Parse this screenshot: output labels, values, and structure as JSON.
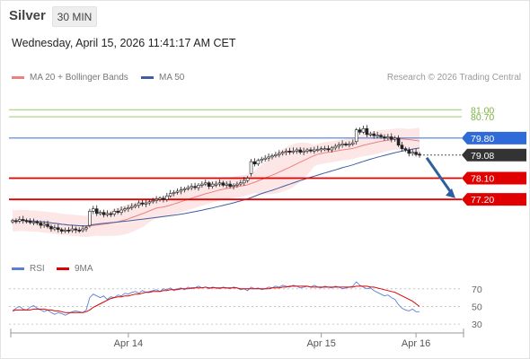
{
  "header": {
    "instrument": "Silver",
    "timeframe": "30 MIN",
    "datetime": "Wednesday, April 15, 2026 11:41:17 AM CET"
  },
  "legend": {
    "ma20_label": "MA 20 + Bollinger Bands",
    "ma50_label": "MA 50",
    "credit": "Research © 2026 Trading Central",
    "rsi_label": "RSI",
    "rsi_ma_label": "9MA"
  },
  "colors": {
    "bull": "#ffffff",
    "bear": "#222222",
    "ma20": "#f08080",
    "bands": "#fde6e6",
    "ma50": "#3f5ea3",
    "green_level": "#9ccc65",
    "blue_level": "#4a7fd8",
    "red_level": "#e00000",
    "arrow": "#2e5f9e",
    "rsi": "#5b7fd6",
    "rsi_ma": "#e00000"
  },
  "chart_data": {
    "type": "candlestick",
    "price_axis": {
      "ylim": [
        75.0,
        82.0
      ]
    },
    "x_axis": {
      "tick_labels": [
        "Apr 14",
        "Apr 15",
        "Apr 16"
      ],
      "tick_bars": [
        33,
        88,
        115
      ]
    },
    "levels": [
      {
        "label": "81.00",
        "value": 81.0,
        "style": "green"
      },
      {
        "label": "80.70",
        "value": 80.7,
        "style": "green"
      },
      {
        "label": "79.80",
        "value": 79.8,
        "style": "blue"
      },
      {
        "label": "79.08",
        "value": 79.08,
        "style": "last"
      },
      {
        "label": "78.10",
        "value": 78.1,
        "style": "red"
      },
      {
        "label": "77.20",
        "value": 77.2,
        "style": "red"
      }
    ],
    "forecast_arrow": {
      "from": 79.08,
      "to": 77.25
    },
    "candles_close": [
      76.3,
      76.28,
      76.35,
      76.3,
      76.28,
      76.22,
      76.25,
      76.2,
      76.1,
      76.15,
      76.05,
      75.95,
      76.0,
      75.92,
      75.85,
      75.9,
      75.88,
      75.95,
      75.9,
      75.88,
      75.95,
      76.0,
      76.7,
      76.8,
      76.6,
      76.65,
      76.55,
      76.6,
      76.58,
      76.7,
      76.65,
      76.75,
      76.8,
      76.85,
      76.9,
      76.95,
      77.05,
      77.0,
      77.05,
      77.1,
      77.15,
      77.2,
      77.25,
      77.2,
      77.35,
      77.45,
      77.5,
      77.55,
      77.6,
      77.65,
      77.7,
      77.75,
      77.7,
      77.8,
      77.85,
      77.9,
      77.75,
      77.85,
      77.85,
      77.9,
      77.8,
      77.85,
      77.75,
      77.8,
      77.85,
      77.9,
      78.0,
      78.1,
      78.8,
      78.7,
      78.85,
      78.9,
      78.95,
      79.0,
      79.05,
      79.1,
      79.15,
      79.2,
      79.25,
      79.2,
      79.25,
      79.3,
      79.2,
      79.25,
      79.3,
      79.25,
      79.3,
      79.32,
      79.35,
      79.35,
      79.3,
      79.38,
      79.45,
      79.5,
      79.55,
      79.52,
      79.55,
      79.6,
      80.15,
      80.05,
      80.2,
      79.95,
      79.98,
      79.9,
      79.92,
      79.85,
      79.8,
      79.85,
      79.75,
      79.8,
      79.5,
      79.35,
      79.3,
      79.15,
      79.2,
      79.1,
      79.08
    ],
    "candles_open": [
      76.25,
      76.3,
      76.28,
      76.35,
      76.3,
      76.28,
      76.22,
      76.25,
      76.2,
      76.1,
      76.15,
      76.05,
      75.95,
      76.0,
      75.92,
      75.85,
      75.9,
      75.88,
      75.95,
      75.9,
      75.88,
      75.95,
      76.1,
      76.7,
      76.8,
      76.6,
      76.65,
      76.55,
      76.6,
      76.58,
      76.7,
      76.65,
      76.75,
      76.8,
      76.85,
      76.9,
      76.95,
      77.05,
      77.0,
      77.05,
      77.1,
      77.15,
      77.2,
      77.25,
      77.2,
      77.35,
      77.45,
      77.5,
      77.55,
      77.6,
      77.65,
      77.7,
      77.75,
      77.7,
      77.8,
      77.85,
      77.9,
      77.75,
      77.85,
      77.85,
      77.9,
      77.8,
      77.85,
      77.75,
      77.8,
      77.85,
      77.9,
      78.0,
      78.3,
      78.8,
      78.7,
      78.85,
      78.9,
      78.95,
      79.0,
      79.05,
      79.1,
      79.15,
      79.2,
      79.25,
      79.2,
      79.25,
      79.3,
      79.2,
      79.25,
      79.3,
      79.25,
      79.3,
      79.32,
      79.35,
      79.35,
      79.3,
      79.38,
      79.45,
      79.5,
      79.55,
      79.52,
      79.55,
      79.65,
      80.15,
      80.05,
      80.2,
      79.95,
      79.98,
      79.9,
      79.92,
      79.85,
      79.8,
      79.85,
      79.75,
      79.8,
      79.5,
      79.35,
      79.3,
      79.15,
      79.2,
      79.12
    ],
    "rsi": {
      "ticks": [
        70,
        50,
        30
      ],
      "ylim": [
        25,
        80
      ],
      "values": [
        45,
        48,
        50,
        47,
        46,
        49,
        51,
        48,
        46,
        44,
        46,
        43,
        41,
        43,
        42,
        40,
        42,
        44,
        45,
        44,
        43,
        46,
        60,
        64,
        62,
        60,
        62,
        58,
        61,
        60,
        63,
        62,
        65,
        64,
        66,
        67,
        65,
        68,
        66,
        67,
        68,
        69,
        67,
        70,
        69,
        71,
        68,
        70,
        71,
        69,
        72,
        70,
        71,
        73,
        71,
        72,
        70,
        72,
        71,
        70,
        72,
        71,
        70,
        72,
        71,
        69,
        70,
        68,
        72,
        70,
        71,
        69,
        70,
        72,
        71,
        73,
        72,
        74,
        73,
        72,
        74,
        73,
        71,
        72,
        73,
        72,
        74,
        72,
        71,
        73,
        72,
        71,
        73,
        72,
        70,
        71,
        72,
        73,
        78,
        74,
        72,
        70,
        71,
        68,
        66,
        64,
        62,
        63,
        60,
        58,
        52,
        48,
        46,
        45,
        47,
        44,
        44
      ],
      "ma": [
        45,
        46,
        46,
        46,
        46,
        46,
        47,
        47,
        47,
        47,
        46,
        46,
        45,
        45,
        44,
        43,
        43,
        43,
        43,
        43,
        43,
        44,
        46,
        49,
        51,
        53,
        55,
        57,
        59,
        60,
        61,
        61,
        62,
        62,
        63,
        64,
        64,
        65,
        66,
        66,
        67,
        67,
        67,
        68,
        68,
        69,
        69,
        69,
        70,
        70,
        70,
        71,
        71,
        71,
        71,
        72,
        71,
        71,
        71,
        71,
        71,
        71,
        71,
        71,
        71,
        70,
        70,
        70,
        70,
        70,
        70,
        70,
        70,
        70,
        71,
        71,
        71,
        72,
        72,
        73,
        73,
        73,
        73,
        73,
        73,
        72,
        72,
        72,
        72,
        72,
        72,
        72,
        72,
        72,
        72,
        72,
        72,
        72,
        73,
        73,
        73,
        73,
        72,
        72,
        71,
        70,
        69,
        68,
        67,
        66,
        64,
        62,
        60,
        58,
        56,
        53,
        50
      ]
    }
  }
}
